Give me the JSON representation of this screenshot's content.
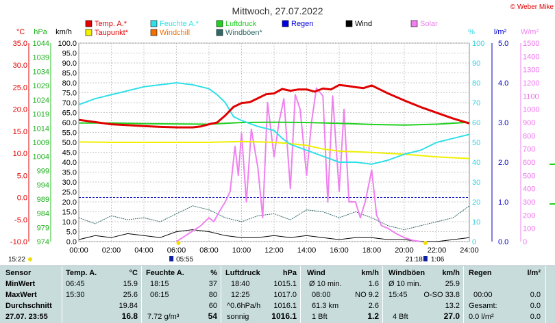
{
  "title": "Mittwoch, 27.07.2022",
  "copyright": "© Weber Mike",
  "legend": [
    {
      "label": "Temp. A.*",
      "color": "#e00000"
    },
    {
      "label": "Feuchte A.*",
      "color": "#30e0e8"
    },
    {
      "label": "Luftdruck",
      "color": "#20d020"
    },
    {
      "label": "Regen",
      "color": "#0000e0"
    },
    {
      "label": "Wind",
      "color": "#000000"
    },
    {
      "label": "Solar",
      "color": "#f080f0"
    },
    {
      "label": "Taupunkt*",
      "color": "#f0f000"
    },
    {
      "label": "Windchill",
      "color": "#f07000"
    },
    {
      "label": "Windböen*",
      "color": "#306868"
    }
  ],
  "axis_units": {
    "temp": "°C",
    "hpa": "hPa",
    "kmh": "km/h",
    "pct": "%",
    "rain": "l/m²",
    "solar": "W/m²"
  },
  "ticks": {
    "temp": [
      "35.0",
      "30.0",
      "25.0",
      "20.0",
      "15.0",
      "10.0",
      "5.0",
      "0.0",
      "-5.0",
      "-10.0"
    ],
    "hpa": [
      "1044",
      "1039",
      "1034",
      "1029",
      "1024",
      "1019",
      "1014",
      "1009",
      "1004",
      "999",
      "994",
      "989",
      "984",
      "979",
      "974"
    ],
    "kmh": [
      "100.0",
      "95.0",
      "90.0",
      "85.0",
      "80.0",
      "75.0",
      "70.0",
      "65.0",
      "60.0",
      "55.0",
      "50.0",
      "45.0",
      "40.0",
      "35.0",
      "30.0",
      "25.0",
      "20.0",
      "15.0",
      "10.0",
      "5.0",
      "0.0"
    ],
    "pct": [
      "100",
      "90",
      "80",
      "70",
      "60",
      "50",
      "40",
      "30",
      "20",
      "10",
      "0"
    ],
    "rain": [
      "5.0",
      "4.0",
      "3.0",
      "2.0",
      "1.0",
      "0.0"
    ],
    "solar": [
      "1500",
      "1400",
      "1300",
      "1200",
      "1100",
      "1000",
      "900",
      "800",
      "700",
      "600",
      "500",
      "400",
      "300",
      "200",
      "100",
      "0"
    ],
    "x": [
      "00:00",
      "02:00",
      "04:00",
      "06:00",
      "08:00",
      "10:00",
      "12:00",
      "14:00",
      "16:00",
      "18:00",
      "20:00",
      "22:00",
      "24:00"
    ]
  },
  "sun": {
    "rise": "05:55",
    "set": "21:18",
    "moon_rise": "15:22",
    "moon_set": "1:06"
  },
  "chart_data": {
    "type": "line",
    "x_unit": "hour",
    "ylim_kmh": [
      0,
      100
    ],
    "grid": true,
    "series": [
      {
        "name": "Temp. A.*",
        "axis": "temp",
        "color": "#e00000",
        "width": 3,
        "x": [
          0,
          1,
          2,
          3,
          4,
          5,
          6,
          7,
          7.5,
          8,
          8.5,
          9,
          9.5,
          10,
          10.5,
          11,
          11.5,
          12,
          12.5,
          13,
          13.5,
          14,
          14.5,
          15,
          15.5,
          16,
          16.5,
          17,
          17.5,
          18,
          18.5,
          19,
          20,
          21,
          22,
          23,
          24
        ],
        "y": [
          17.6,
          17.1,
          16.6,
          16.4,
          16.2,
          16.0,
          15.9,
          15.9,
          16.1,
          16.6,
          17.0,
          18.6,
          20.5,
          21.4,
          21.6,
          22.5,
          23.4,
          23.6,
          24.6,
          24.2,
          24.5,
          24.5,
          24.0,
          24.7,
          24.5,
          25.5,
          25.3,
          25.0,
          24.8,
          25.4,
          24.5,
          23.6,
          22.0,
          20.5,
          19.2,
          17.9,
          16.8
        ]
      },
      {
        "name": "Taupunkt*",
        "axis": "temp",
        "color": "#f0f000",
        "width": 2,
        "x": [
          0,
          2,
          4,
          6,
          8,
          10,
          12,
          13,
          14,
          15,
          16,
          18,
          20,
          22,
          24
        ],
        "y": [
          12.6,
          12.5,
          12.5,
          12.5,
          12.5,
          12.7,
          12.5,
          12.2,
          11.8,
          11.0,
          10.5,
          10.2,
          9.8,
          9.2,
          8.8
        ]
      },
      {
        "name": "Feuchte A.*",
        "axis": "pct",
        "color": "#30e0e8",
        "width": 2,
        "x": [
          0,
          1,
          2,
          3,
          4,
          5,
          6,
          7,
          8,
          8.5,
          9,
          9.5,
          10,
          11,
          12,
          12.5,
          13,
          14,
          15,
          16,
          17,
          18,
          19,
          20,
          21,
          22,
          23,
          24
        ],
        "y": [
          69,
          72,
          74,
          76,
          78,
          79,
          80,
          79,
          77,
          74,
          70,
          63,
          61,
          58,
          56,
          52,
          49,
          46,
          43,
          40,
          40,
          39,
          41,
          44,
          46,
          50,
          52,
          54
        ]
      },
      {
        "name": "Luftdruck",
        "axis": "hpa",
        "color": "#20d020",
        "width": 2,
        "x": [
          0,
          2,
          4,
          6,
          8,
          10,
          12,
          14,
          16,
          18,
          20,
          22,
          24
        ],
        "y": [
          1015.8,
          1015.8,
          1015.6,
          1015.5,
          1015.4,
          1016.0,
          1016.1,
          1016.0,
          1015.7,
          1015.3,
          1015.1,
          1015.4,
          1016.1
        ]
      },
      {
        "name": "Solar",
        "axis": "solar",
        "color": "#f080f0",
        "width": 2,
        "x": [
          6,
          6.5,
          7,
          7.5,
          8,
          8.3,
          8.6,
          9,
          9.3,
          9.6,
          9.8,
          10,
          10.3,
          10.6,
          11,
          11.3,
          11.6,
          12,
          12.3,
          12.6,
          13,
          13.3,
          13.6,
          14,
          14.3,
          14.6,
          15,
          15.3,
          15.6,
          16,
          16.3,
          16.6,
          17,
          17.3,
          17.6,
          18,
          18.3,
          18.6,
          19,
          19.5,
          20,
          20.5,
          21
        ],
        "y": [
          0,
          40,
          80,
          120,
          180,
          150,
          220,
          300,
          380,
          720,
          500,
          820,
          300,
          850,
          560,
          180,
          1050,
          640,
          900,
          1080,
          400,
          1110,
          1000,
          500,
          900,
          1160,
          1100,
          300,
          1100,
          380,
          1000,
          300,
          300,
          180,
          300,
          540,
          200,
          120,
          100,
          60,
          30,
          10,
          0
        ]
      },
      {
        "name": "Wind",
        "axis": "kmh",
        "color": "#000000",
        "width": 1,
        "x": [
          0,
          1,
          2,
          3,
          4,
          5,
          6,
          7,
          8,
          9,
          10,
          11,
          12,
          13,
          14,
          15,
          16,
          17,
          18,
          19,
          20,
          21,
          22,
          23,
          24
        ],
        "y": [
          1,
          3,
          2,
          4,
          3,
          2,
          5,
          6,
          5,
          3,
          2,
          2,
          3,
          2,
          3,
          2,
          1,
          2,
          2,
          1,
          1,
          0,
          0,
          1,
          2
        ]
      },
      {
        "name": "Windböen*",
        "axis": "kmh",
        "color": "#306868",
        "width": 1,
        "x": [
          0,
          1,
          2,
          3,
          4,
          5,
          6,
          7,
          8,
          9,
          10,
          11,
          12,
          13,
          14,
          15,
          16,
          17,
          18,
          19,
          20,
          21,
          22,
          23,
          24
        ],
        "y": [
          12,
          9,
          13,
          11,
          12,
          10,
          14,
          18,
          16,
          12,
          10,
          13,
          14,
          11,
          16,
          15,
          12,
          15,
          12,
          8,
          6,
          8,
          10,
          12,
          18
        ]
      }
    ]
  },
  "table": {
    "row_labels": [
      "Sensor",
      "MinWert",
      "MaxWert",
      "Durchschnitt",
      "27.07. 23:55"
    ],
    "temp": {
      "header": "Temp. A.",
      "unit": "°C",
      "min_time": "06:45",
      "min": "15.9",
      "max_time": "15:30",
      "max": "25.6",
      "avg": "19.84",
      "current": "16.8"
    },
    "hum": {
      "header": "Feuchte A.",
      "unit": "%",
      "min_time": "18:15",
      "min": "37",
      "max_time": "06:15",
      "max": "80",
      "avg": "60",
      "abs": "7.72 g/m³",
      "current": "54"
    },
    "press": {
      "header": "Luftdruck",
      "unit": "hPa",
      "min_time": "18:40",
      "min": "1015.1",
      "max_time": "12:25",
      "max": "1017.0",
      "avg_label": "^0.6hPa/h",
      "avg": "1016.1",
      "cond": "sonnig",
      "current": "1016.1"
    },
    "wind": {
      "header": "Wind",
      "unit": "km/h",
      "r1a": "Ø 10 min.",
      "r1b": "1.6",
      "r2a": "08:00",
      "r2b": "NO 9.2",
      "r3a": "61.3 km",
      "r3b": "2.6",
      "r4a": "1 Bft",
      "r4b": "1.2"
    },
    "gust": {
      "header": "Windböen",
      "unit": "km/h",
      "r1a": "Ø 10 min.",
      "r1b": "25.9",
      "r2a": "15:45",
      "r2b": "O-SO 33.8",
      "r3b": "13.2",
      "r4a": "4 Bft",
      "r4b": "27.0"
    },
    "rain": {
      "header": "Regen",
      "unit": "l/m²",
      "r2a": "00:00",
      "r2b": "0.0",
      "r3a": "Gesamt:",
      "r3b": "0.0",
      "r4a": "0.0 l/m²",
      "r4b": "0.0"
    }
  }
}
